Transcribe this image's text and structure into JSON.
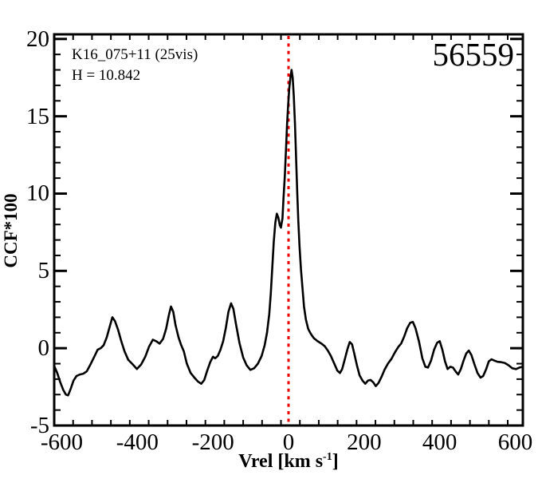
{
  "figure": {
    "annotations": {
      "target_name": "K16_075+11 (25vis)",
      "h_index": "H = 10.842",
      "object_id": "56559"
    },
    "axes": {
      "xlabel_main": "Vrel [km s",
      "xlabel_sup": "-1",
      "xlabel_close": "]",
      "ylabel": "CCF*100"
    },
    "colors": {
      "curve": "#000000",
      "frame": "#000000",
      "ref_line": "#ee0000",
      "background": "#ffffff"
    }
  },
  "chart_data": {
    "type": "line",
    "title": "",
    "xlabel": "Vrel [km s^-1]",
    "ylabel": "CCF*100",
    "xlim": [
      -620,
      620
    ],
    "ylim": [
      -5,
      20.3
    ],
    "x_major_ticks": [
      -600,
      -400,
      -200,
      0,
      200,
      400,
      600
    ],
    "x_minor_step": 50,
    "y_major_ticks": [
      -5,
      0,
      5,
      10,
      15,
      20
    ],
    "y_minor_step": 1,
    "grid": false,
    "legend": "none",
    "ref_line": {
      "x": 0,
      "color": "#ee0000",
      "style": "dotted"
    },
    "series": [
      {
        "name": "CCF",
        "color": "#000000",
        "points": [
          [
            -620,
            -1.15
          ],
          [
            -612,
            -1.6
          ],
          [
            -604,
            -2.2
          ],
          [
            -596,
            -2.7
          ],
          [
            -589,
            -3.0
          ],
          [
            -583,
            -3.05
          ],
          [
            -576,
            -2.6
          ],
          [
            -569,
            -2.1
          ],
          [
            -561,
            -1.8
          ],
          [
            -552,
            -1.7
          ],
          [
            -543,
            -1.65
          ],
          [
            -534,
            -1.5
          ],
          [
            -524,
            -1.05
          ],
          [
            -514,
            -0.55
          ],
          [
            -505,
            -0.1
          ],
          [
            -497,
            0.0
          ],
          [
            -489,
            0.2
          ],
          [
            -481,
            0.7
          ],
          [
            -473,
            1.4
          ],
          [
            -466,
            2.0
          ],
          [
            -459,
            1.75
          ],
          [
            -451,
            1.2
          ],
          [
            -443,
            0.5
          ],
          [
            -434,
            -0.2
          ],
          [
            -424,
            -0.75
          ],
          [
            -412,
            -1.05
          ],
          [
            -401,
            -1.35
          ],
          [
            -390,
            -1.05
          ],
          [
            -379,
            -0.55
          ],
          [
            -369,
            0.1
          ],
          [
            -359,
            0.55
          ],
          [
            -350,
            0.45
          ],
          [
            -341,
            0.3
          ],
          [
            -332,
            0.6
          ],
          [
            -324,
            1.25
          ],
          [
            -317,
            2.1
          ],
          [
            -311,
            2.7
          ],
          [
            -305,
            2.35
          ],
          [
            -299,
            1.5
          ],
          [
            -291,
            0.7
          ],
          [
            -284,
            0.2
          ],
          [
            -277,
            -0.2
          ],
          [
            -269,
            -1.0
          ],
          [
            -259,
            -1.6
          ],
          [
            -249,
            -1.9
          ],
          [
            -240,
            -2.15
          ],
          [
            -231,
            -2.3
          ],
          [
            -223,
            -2.05
          ],
          [
            -215,
            -1.45
          ],
          [
            -207,
            -0.9
          ],
          [
            -200,
            -0.55
          ],
          [
            -194,
            -0.65
          ],
          [
            -187,
            -0.5
          ],
          [
            -180,
            -0.1
          ],
          [
            -173,
            0.45
          ],
          [
            -166,
            1.3
          ],
          [
            -159,
            2.35
          ],
          [
            -152,
            2.9
          ],
          [
            -146,
            2.55
          ],
          [
            -139,
            1.55
          ],
          [
            -130,
            0.35
          ],
          [
            -120,
            -0.6
          ],
          [
            -111,
            -1.1
          ],
          [
            -101,
            -1.4
          ],
          [
            -91,
            -1.3
          ],
          [
            -81,
            -1.0
          ],
          [
            -71,
            -0.5
          ],
          [
            -63,
            0.2
          ],
          [
            -57,
            1.0
          ],
          [
            -51,
            2.2
          ],
          [
            -47,
            3.5
          ],
          [
            -43,
            5.2
          ],
          [
            -39,
            6.9
          ],
          [
            -35,
            8.1
          ],
          [
            -31,
            8.7
          ],
          [
            -27,
            8.45
          ],
          [
            -23,
            7.95
          ],
          [
            -20,
            7.8
          ],
          [
            -16,
            8.4
          ],
          [
            -13,
            9.8
          ],
          [
            -10,
            11.1
          ],
          [
            -7,
            12.7
          ],
          [
            -4,
            14.4
          ],
          [
            -1,
            15.7
          ],
          [
            2,
            16.8
          ],
          [
            5,
            17.5
          ],
          [
            8,
            18.0
          ],
          [
            11,
            17.5
          ],
          [
            14,
            16.3
          ],
          [
            17,
            14.5
          ],
          [
            20,
            12.3
          ],
          [
            23,
            10.1
          ],
          [
            26,
            8.2
          ],
          [
            29,
            6.6
          ],
          [
            33,
            5.1
          ],
          [
            37,
            3.9
          ],
          [
            41,
            2.7
          ],
          [
            46,
            1.85
          ],
          [
            52,
            1.25
          ],
          [
            59,
            0.92
          ],
          [
            67,
            0.65
          ],
          [
            77,
            0.45
          ],
          [
            87,
            0.3
          ],
          [
            96,
            0.12
          ],
          [
            104,
            -0.15
          ],
          [
            112,
            -0.5
          ],
          [
            121,
            -1.0
          ],
          [
            129,
            -1.45
          ],
          [
            136,
            -1.6
          ],
          [
            142,
            -1.35
          ],
          [
            149,
            -0.7
          ],
          [
            156,
            -0.05
          ],
          [
            162,
            0.4
          ],
          [
            168,
            0.25
          ],
          [
            174,
            -0.35
          ],
          [
            181,
            -1.1
          ],
          [
            188,
            -1.75
          ],
          [
            196,
            -2.1
          ],
          [
            203,
            -2.3
          ],
          [
            210,
            -2.1
          ],
          [
            217,
            -2.05
          ],
          [
            224,
            -2.2
          ],
          [
            231,
            -2.45
          ],
          [
            238,
            -2.25
          ],
          [
            246,
            -1.85
          ],
          [
            254,
            -1.4
          ],
          [
            263,
            -1.0
          ],
          [
            272,
            -0.7
          ],
          [
            282,
            -0.25
          ],
          [
            291,
            0.1
          ],
          [
            298,
            0.3
          ],
          [
            306,
            0.75
          ],
          [
            314,
            1.3
          ],
          [
            322,
            1.65
          ],
          [
            329,
            1.7
          ],
          [
            336,
            1.3
          ],
          [
            345,
            0.45
          ],
          [
            354,
            -0.65
          ],
          [
            362,
            -1.2
          ],
          [
            369,
            -1.25
          ],
          [
            377,
            -0.8
          ],
          [
            385,
            -0.1
          ],
          [
            393,
            0.35
          ],
          [
            400,
            0.45
          ],
          [
            407,
            -0.1
          ],
          [
            414,
            -0.85
          ],
          [
            421,
            -1.35
          ],
          [
            428,
            -1.2
          ],
          [
            435,
            -1.25
          ],
          [
            442,
            -1.5
          ],
          [
            449,
            -1.7
          ],
          [
            456,
            -1.35
          ],
          [
            463,
            -0.8
          ],
          [
            470,
            -0.35
          ],
          [
            477,
            -0.15
          ],
          [
            484,
            -0.45
          ],
          [
            492,
            -1.05
          ],
          [
            500,
            -1.6
          ],
          [
            508,
            -1.9
          ],
          [
            515,
            -1.8
          ],
          [
            523,
            -1.35
          ],
          [
            530,
            -0.85
          ],
          [
            537,
            -0.72
          ],
          [
            545,
            -0.8
          ],
          [
            553,
            -0.88
          ],
          [
            562,
            -0.9
          ],
          [
            572,
            -0.95
          ],
          [
            582,
            -1.1
          ],
          [
            592,
            -1.3
          ],
          [
            602,
            -1.35
          ],
          [
            611,
            -1.25
          ],
          [
            620,
            -1.2
          ]
        ]
      }
    ]
  }
}
